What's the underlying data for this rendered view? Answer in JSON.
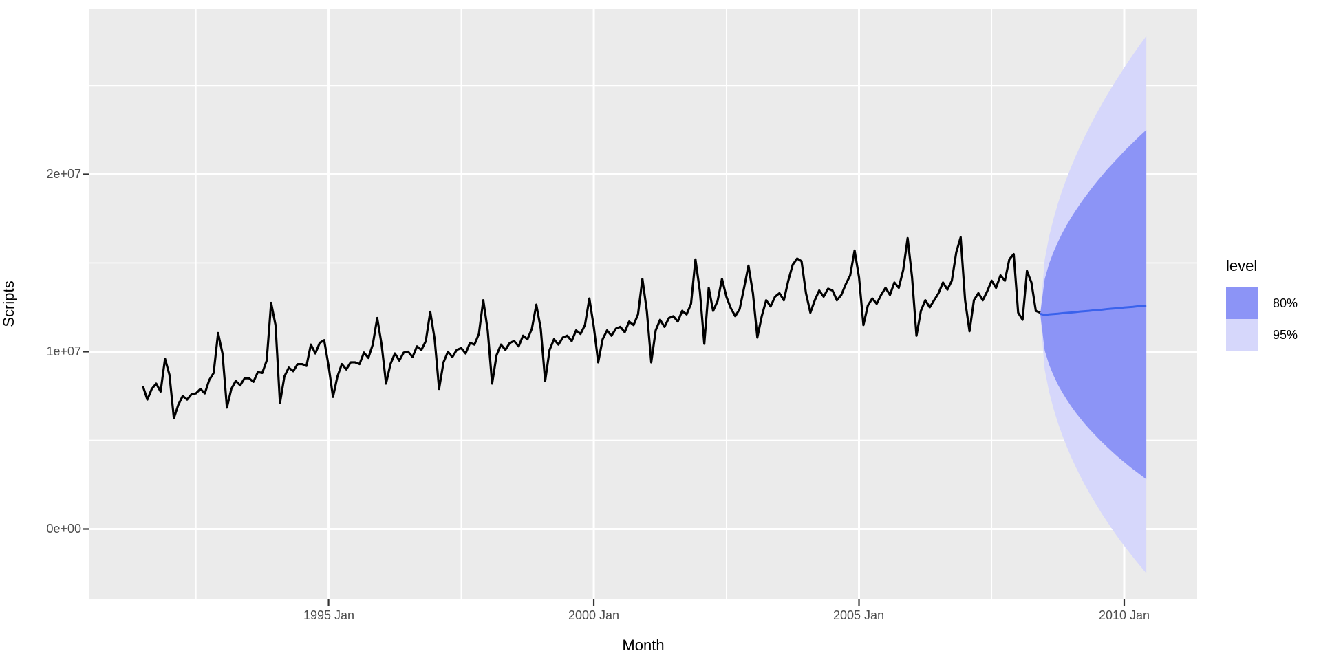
{
  "figure": {
    "background": "#ffffff",
    "panel_background": "#ebebeb",
    "grid_color": "#ffffff",
    "tick_color": "#333333",
    "tick_text_color": "#4d4d4d"
  },
  "axes": {
    "y": {
      "title": "Scripts",
      "ticks": [
        {
          "label": "2e+07",
          "value": 20000000
        },
        {
          "label": "1e+07",
          "value": 10000000
        },
        {
          "label": "0e+00",
          "value": 0
        }
      ],
      "minor_values": [
        5000000,
        15000000,
        25000000
      ]
    },
    "x": {
      "title": "Month",
      "ticks": [
        {
          "label": "1995 Jan",
          "month_index": -60
        },
        {
          "label": "2000 Jan",
          "month_index": 0
        },
        {
          "label": "2005 Jan",
          "month_index": 60
        },
        {
          "label": "2010 Jan",
          "month_index": 120
        }
      ],
      "minor_month_indices": [
        -90,
        -30,
        30,
        90
      ]
    }
  },
  "legend": {
    "title": "level",
    "items": [
      {
        "label": "80%",
        "color": "#8c94f6"
      },
      {
        "label": "95%",
        "color": "#d6d7fb"
      }
    ]
  },
  "chart_data": {
    "type": "line",
    "title": "",
    "xlabel": "Month",
    "ylabel": "Scripts",
    "x_unit": "months since 2000 Jan",
    "y_unit": "scripts (values given in millions)",
    "x_domain_months": [
      -114.1,
      136.5
    ],
    "y_domain": [
      -3973000,
      29320000
    ],
    "history_color": "#000000",
    "forecast_line_color": "#3a62ec",
    "band_80_color": "#8c94f6",
    "band_95_color": "#d6d7fb",
    "history": {
      "start": "1991 Jul",
      "end": "2008 Jun",
      "start_month_index": -102,
      "frequency": "monthly",
      "values_millions": [
        8.05,
        7.3,
        7.9,
        8.2,
        7.75,
        9.6,
        8.7,
        6.25,
        7.0,
        7.5,
        7.3,
        7.6,
        7.65,
        7.9,
        7.65,
        8.4,
        8.8,
        11.05,
        9.9,
        6.85,
        7.9,
        8.35,
        8.1,
        8.5,
        8.5,
        8.3,
        8.85,
        8.8,
        9.5,
        12.75,
        11.5,
        7.1,
        8.6,
        9.1,
        8.9,
        9.3,
        9.3,
        9.2,
        10.4,
        9.9,
        10.5,
        10.65,
        9.2,
        7.45,
        8.6,
        9.3,
        9.0,
        9.4,
        9.4,
        9.3,
        9.95,
        9.65,
        10.4,
        11.9,
        10.4,
        8.2,
        9.3,
        9.9,
        9.5,
        9.95,
        10.0,
        9.7,
        10.3,
        10.1,
        10.6,
        12.25,
        10.7,
        7.9,
        9.4,
        10.0,
        9.7,
        10.1,
        10.2,
        9.9,
        10.5,
        10.4,
        11.0,
        12.9,
        11.2,
        8.2,
        9.8,
        10.4,
        10.1,
        10.5,
        10.6,
        10.3,
        10.9,
        10.7,
        11.3,
        12.65,
        11.3,
        8.35,
        10.1,
        10.7,
        10.4,
        10.8,
        10.9,
        10.6,
        11.2,
        11.0,
        11.5,
        13.0,
        11.4,
        9.4,
        10.7,
        11.2,
        10.9,
        11.3,
        11.4,
        11.1,
        11.7,
        11.5,
        12.1,
        14.1,
        12.3,
        9.4,
        11.2,
        11.8,
        11.4,
        11.9,
        12.0,
        11.7,
        12.3,
        12.1,
        12.7,
        15.2,
        13.4,
        10.45,
        13.6,
        12.3,
        12.85,
        14.1,
        13.1,
        12.45,
        12.0,
        12.4,
        13.6,
        14.85,
        13.3,
        10.8,
        12.0,
        12.9,
        12.55,
        13.1,
        13.3,
        12.9,
        14.0,
        14.9,
        15.25,
        15.1,
        13.3,
        12.2,
        12.9,
        13.45,
        13.1,
        13.55,
        13.45,
        12.9,
        13.2,
        13.8,
        14.3,
        15.7,
        14.2,
        11.5,
        12.6,
        13.0,
        12.7,
        13.2,
        13.6,
        13.2,
        13.9,
        13.6,
        14.6,
        16.4,
        14.2,
        10.9,
        12.3,
        12.9,
        12.5,
        12.9,
        13.3,
        13.9,
        13.5,
        14.0,
        15.6,
        16.45,
        12.9,
        11.15,
        12.9,
        13.3,
        12.9,
        13.4,
        14.0,
        13.6,
        14.3,
        14.0,
        15.2,
        15.5,
        12.2,
        11.8,
        14.55,
        13.9,
        12.3,
        12.2
      ]
    },
    "forecast": {
      "start": "2008 Jul",
      "end": "2010 Jun",
      "start_month_index": 102,
      "levels": [
        "80%",
        "95%"
      ],
      "mean_millions": [
        12.07,
        12.1,
        12.12,
        12.14,
        12.17,
        12.19,
        12.21,
        12.23,
        12.26,
        12.28,
        12.3,
        12.33,
        12.35,
        12.37,
        12.4,
        12.42,
        12.44,
        12.46,
        12.49,
        12.51,
        12.53,
        12.56,
        12.58,
        12.6
      ],
      "hi95_millions": [
        15.17,
        16.49,
        17.49,
        18.35,
        19.11,
        19.79,
        20.42,
        21.01,
        21.57,
        22.09,
        22.59,
        23.08,
        23.54,
        23.98,
        24.42,
        24.83,
        25.23,
        25.62,
        26.01,
        26.39,
        26.75,
        27.11,
        27.46,
        27.8
      ],
      "lo95_millions": [
        8.99,
        7.74,
        6.78,
        5.98,
        5.28,
        4.64,
        4.05,
        3.51,
        3.01,
        2.53,
        2.08,
        1.65,
        1.24,
        0.84,
        0.46,
        0.09,
        -0.27,
        -0.62,
        -0.95,
        -1.27,
        -1.59,
        -1.9,
        -2.2,
        -2.5
      ],
      "hi80_millions": [
        14.09,
        14.96,
        15.62,
        16.18,
        16.69,
        17.14,
        17.56,
        17.95,
        18.32,
        18.67,
        19.0,
        19.33,
        19.64,
        19.93,
        20.23,
        20.5,
        20.77,
        21.03,
        21.3,
        21.55,
        21.79,
        22.04,
        22.27,
        22.5
      ],
      "lo80_millions": [
        10.07,
        9.27,
        8.66,
        8.14,
        7.7,
        7.29,
        6.92,
        6.57,
        6.26,
        5.95,
        5.67,
        5.4,
        5.14,
        4.89,
        4.65,
        4.42,
        4.19,
        3.97,
        3.77,
        3.56,
        3.36,
        3.18,
        2.99,
        2.8
      ]
    }
  }
}
